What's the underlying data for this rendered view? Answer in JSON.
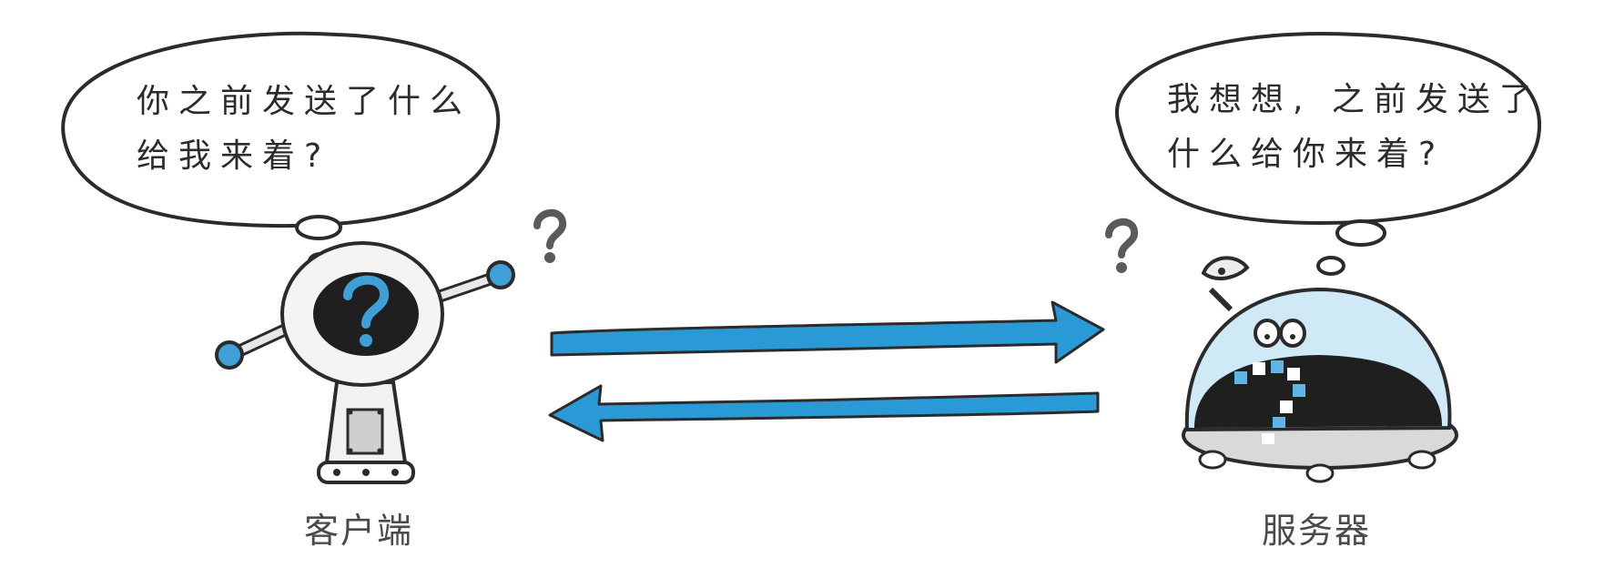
{
  "client": {
    "thought_lines": [
      "你之前发送了什么",
      "给我来着?"
    ],
    "label": "客户端",
    "floating_mark": "?"
  },
  "server": {
    "thought_lines": [
      "我想想, 之前发送了",
      "什么给你来着?"
    ],
    "label": "服务器",
    "floating_mark": "?"
  },
  "colors": {
    "arrow": "#2a9ad6",
    "outline": "#2b2b2b",
    "accent_blue": "#3fa0d8",
    "dome_blue": "#cfe9f7"
  }
}
